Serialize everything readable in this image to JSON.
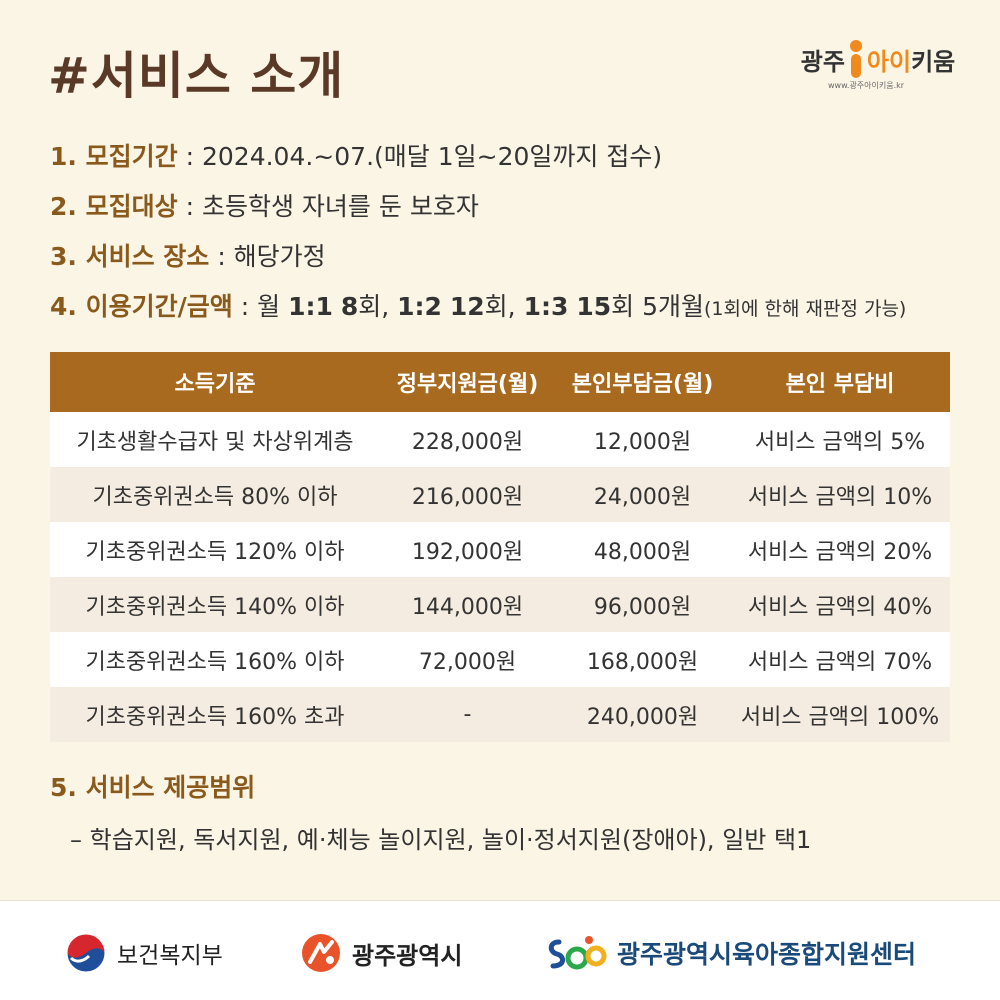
{
  "title": "#서비스 소개",
  "brand": {
    "part1": "광주",
    "part2": "아이",
    "part3": "키움",
    "url": "www.광주아이키움.kr"
  },
  "info": [
    {
      "label": "1. 모집기간",
      "value": " : 2024.04.~07.(매달 1일~20일까지 접수)"
    },
    {
      "label": "2. 모집대상",
      "value": " : 초등학생 자녀를 둔 보호자"
    },
    {
      "label": "3. 서비스 장소",
      "value": " : 해당가정"
    }
  ],
  "usage": {
    "label": "4. 이용기간/금액",
    "prefix": " : 월 ",
    "r1": "1:1",
    "n1": "8",
    "t1": "회, ",
    "r2": "1:2",
    "n2": "12",
    "t2": "회, ",
    "r3": "1:3",
    "n3": "15",
    "t3": "회 5개월",
    "note": "(1회에 한해 재판정 가능)"
  },
  "table": {
    "headers": [
      "소득기준",
      "정부지원금(월)",
      "본인부담금(월)",
      "본인 부담비"
    ],
    "rows": [
      [
        "기초생활수급자 및 차상위계층",
        "228,000원",
        "12,000원",
        "서비스 금액의 5%"
      ],
      [
        "기초중위권소득 80% 이하",
        "216,000원",
        "24,000원",
        "서비스 금액의 10%"
      ],
      [
        "기초중위권소득 120% 이하",
        "192,000원",
        "48,000원",
        "서비스 금액의 20%"
      ],
      [
        "기초중위권소득 140% 이하",
        "144,000원",
        "96,000원",
        "서비스 금액의 40%"
      ],
      [
        "기초중위권소득 160% 이하",
        "72,000원",
        "168,000원",
        "서비스 금액의 70%"
      ],
      [
        "기초중위권소득 160% 초과",
        "-",
        "240,000원",
        "서비스 금액의 100%"
      ]
    ]
  },
  "section5": {
    "label": "5. 서비스 제공범위",
    "desc": "– 학습지원, 독서지원, 예·체능 놀이지원, 놀이·정서지원(장애아), 일반 택1"
  },
  "footer": {
    "logo1": "보건복지부",
    "logo2": "광주광역시",
    "logo3": "광주광역시육아종합지원센터"
  },
  "colors": {
    "accent": "#a86a1e",
    "label": "#8a5a1c",
    "title": "#5a3a26",
    "brand_orange": "#f08a1c"
  }
}
